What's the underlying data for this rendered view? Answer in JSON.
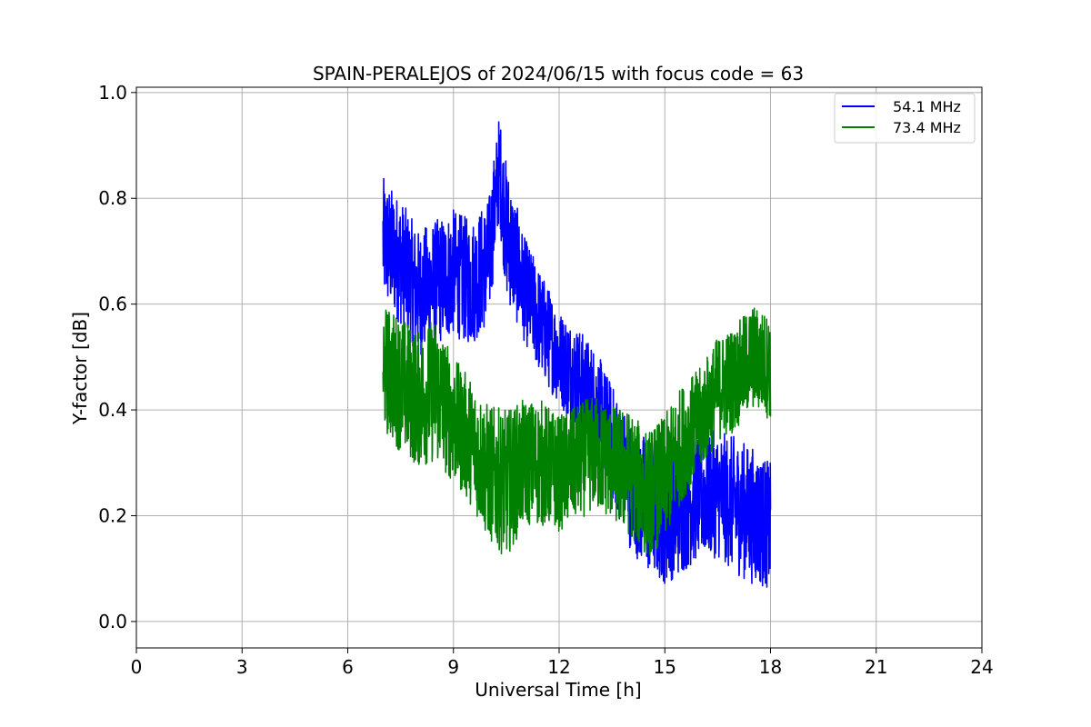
{
  "chart_data": {
    "type": "line",
    "title": "SPAIN-PERALEJOS of 2024/06/15 with focus code = 63",
    "xlabel": "Universal Time [h]",
    "ylabel": "Y-factor [dB]",
    "xlim": [
      0,
      24
    ],
    "ylim": [
      -0.05,
      1.01
    ],
    "xticks": [
      0,
      3,
      6,
      9,
      12,
      15,
      18,
      21,
      24
    ],
    "yticks": [
      0.0,
      0.2,
      0.4,
      0.6,
      0.8,
      1.0
    ],
    "xtick_labels": [
      "0",
      "3",
      "6",
      "9",
      "12",
      "15",
      "18",
      "21",
      "24"
    ],
    "ytick_labels": [
      "0.0",
      "0.2",
      "0.4",
      "0.6",
      "0.8",
      "1.0"
    ],
    "grid": true,
    "legend_position": "top-right",
    "series": [
      {
        "name": "54.1 MHz",
        "color": "#0000ff",
        "x": [
          7.0,
          7.5,
          8.0,
          8.5,
          9.0,
          9.5,
          10.0,
          10.3,
          10.5,
          11.0,
          11.5,
          12.0,
          12.5,
          13.0,
          13.5,
          14.0,
          14.5,
          15.0,
          15.5,
          16.0,
          16.5,
          17.0,
          17.5,
          18.0
        ],
        "y": [
          0.72,
          0.68,
          0.62,
          0.64,
          0.66,
          0.64,
          0.68,
          0.86,
          0.74,
          0.63,
          0.56,
          0.5,
          0.46,
          0.42,
          0.34,
          0.26,
          0.22,
          0.2,
          0.22,
          0.24,
          0.24,
          0.22,
          0.2,
          0.18
        ],
        "band": [
          0.12,
          0.12,
          0.12,
          0.12,
          0.12,
          0.12,
          0.12,
          0.1,
          0.13,
          0.1,
          0.1,
          0.09,
          0.1,
          0.1,
          0.11,
          0.12,
          0.13,
          0.13,
          0.13,
          0.12,
          0.12,
          0.13,
          0.13,
          0.12
        ]
      },
      {
        "name": "73.4 MHz",
        "color": "#008000",
        "x": [
          7.0,
          7.5,
          8.0,
          8.5,
          9.0,
          9.5,
          10.0,
          10.5,
          11.0,
          11.5,
          12.0,
          12.5,
          13.0,
          13.5,
          14.0,
          14.5,
          15.0,
          15.5,
          16.0,
          16.5,
          17.0,
          17.5,
          18.0
        ],
        "y": [
          0.48,
          0.45,
          0.42,
          0.44,
          0.38,
          0.34,
          0.28,
          0.26,
          0.3,
          0.3,
          0.28,
          0.3,
          0.32,
          0.3,
          0.28,
          0.24,
          0.27,
          0.34,
          0.38,
          0.44,
          0.46,
          0.5,
          0.48
        ],
        "band": [
          0.12,
          0.13,
          0.13,
          0.14,
          0.12,
          0.12,
          0.13,
          0.14,
          0.12,
          0.12,
          0.11,
          0.11,
          0.11,
          0.11,
          0.12,
          0.12,
          0.12,
          0.11,
          0.1,
          0.1,
          0.1,
          0.1,
          0.1
        ]
      }
    ]
  }
}
